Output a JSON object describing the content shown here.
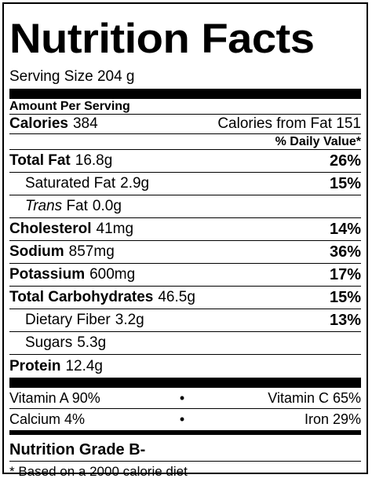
{
  "title": "Nutrition Facts",
  "serving_size": "Serving Size 204 g",
  "amount_per_serving": "Amount Per Serving",
  "calories": {
    "label": "Calories",
    "value": "384",
    "from_fat": "Calories from Fat 151"
  },
  "daily_value_header": "% Daily Value*",
  "nutrients": [
    {
      "label": "Total Fat",
      "amount": "16.8g",
      "pct": "26%"
    },
    {
      "label": "Saturated Fat",
      "amount": "2.9g",
      "pct": "15%"
    },
    {
      "label_italic": "Trans",
      "label": "Fat",
      "amount": "0.0g",
      "pct": ""
    },
    {
      "label": "Cholesterol",
      "amount": "41mg",
      "pct": "14%"
    },
    {
      "label": "Sodium",
      "amount": "857mg",
      "pct": "36%"
    },
    {
      "label": "Potassium",
      "amount": "600mg",
      "pct": "17%"
    },
    {
      "label": "Total Carbohydrates",
      "amount": "46.5g",
      "pct": "15%"
    },
    {
      "label": "Dietary Fiber",
      "amount": "3.2g",
      "pct": "13%"
    },
    {
      "label": "Sugars",
      "amount": "5.3g",
      "pct": ""
    },
    {
      "label": "Protein",
      "amount": "12.4g",
      "pct": ""
    }
  ],
  "vitamins": [
    {
      "left": "Vitamin A 90%",
      "bullet": "•",
      "right": "Vitamin C 65%"
    },
    {
      "left": "Calcium 4%",
      "bullet": "•",
      "right": "Iron 29%"
    }
  ],
  "grade": "Nutrition Grade B-",
  "footnote": "* Based on a 2000 calorie diet"
}
